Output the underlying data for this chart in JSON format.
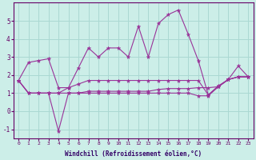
{
  "xlabel": "Windchill (Refroidissement éolien,°C)",
  "bg_color": "#cceee8",
  "grid_color": "#aad8d2",
  "line_color": "#993399",
  "x_ticks": [
    0,
    1,
    2,
    3,
    4,
    5,
    6,
    7,
    8,
    9,
    10,
    11,
    12,
    13,
    14,
    15,
    16,
    17,
    18,
    19,
    20,
    21,
    22,
    23
  ],
  "ylim": [
    -1.5,
    6.0
  ],
  "xlim": [
    -0.5,
    23.5
  ],
  "yticks": [
    -1,
    0,
    1,
    2,
    3,
    4,
    5
  ],
  "series1_x": [
    0,
    1,
    2,
    3,
    4,
    5,
    6,
    7,
    8,
    9,
    10,
    11,
    12,
    13,
    14,
    15,
    16,
    17,
    18,
    19,
    20,
    21,
    22,
    23
  ],
  "series1_y": [
    1.7,
    2.7,
    2.8,
    2.9,
    1.3,
    1.3,
    2.4,
    3.5,
    3.0,
    3.5,
    3.5,
    3.0,
    4.7,
    3.0,
    4.85,
    5.35,
    5.6,
    4.25,
    2.8,
    0.9,
    1.4,
    1.75,
    2.5,
    1.9
  ],
  "series2_x": [
    0,
    1,
    2,
    3,
    4,
    5,
    6,
    7,
    8,
    9,
    10,
    11,
    12,
    13,
    14,
    15,
    16,
    17,
    18,
    19,
    20,
    21,
    22,
    23
  ],
  "series2_y": [
    1.7,
    1.0,
    1.0,
    1.0,
    -1.1,
    1.0,
    1.0,
    1.0,
    1.0,
    1.0,
    1.0,
    1.0,
    1.0,
    1.0,
    1.0,
    1.0,
    1.0,
    1.0,
    0.85,
    0.85,
    1.35,
    1.75,
    1.9,
    1.9
  ],
  "series3_x": [
    0,
    1,
    2,
    3,
    4,
    5,
    6,
    7,
    8,
    9,
    10,
    11,
    12,
    13,
    14,
    15,
    16,
    17,
    18,
    19,
    20,
    21,
    22,
    23
  ],
  "series3_y": [
    1.7,
    1.0,
    1.0,
    1.0,
    1.0,
    1.0,
    1.0,
    1.1,
    1.1,
    1.1,
    1.1,
    1.1,
    1.1,
    1.1,
    1.2,
    1.25,
    1.25,
    1.25,
    1.3,
    1.3,
    1.35,
    1.75,
    1.9,
    1.9
  ],
  "series4_x": [
    0,
    1,
    2,
    3,
    4,
    5,
    6,
    7,
    8,
    9,
    10,
    11,
    12,
    13,
    14,
    15,
    16,
    17,
    18,
    19,
    20,
    21,
    22,
    23
  ],
  "series4_y": [
    1.7,
    1.0,
    1.0,
    1.0,
    1.0,
    1.3,
    1.5,
    1.7,
    1.7,
    1.7,
    1.7,
    1.7,
    1.7,
    1.7,
    1.7,
    1.7,
    1.7,
    1.7,
    1.7,
    0.9,
    1.35,
    1.75,
    1.9,
    1.9
  ]
}
